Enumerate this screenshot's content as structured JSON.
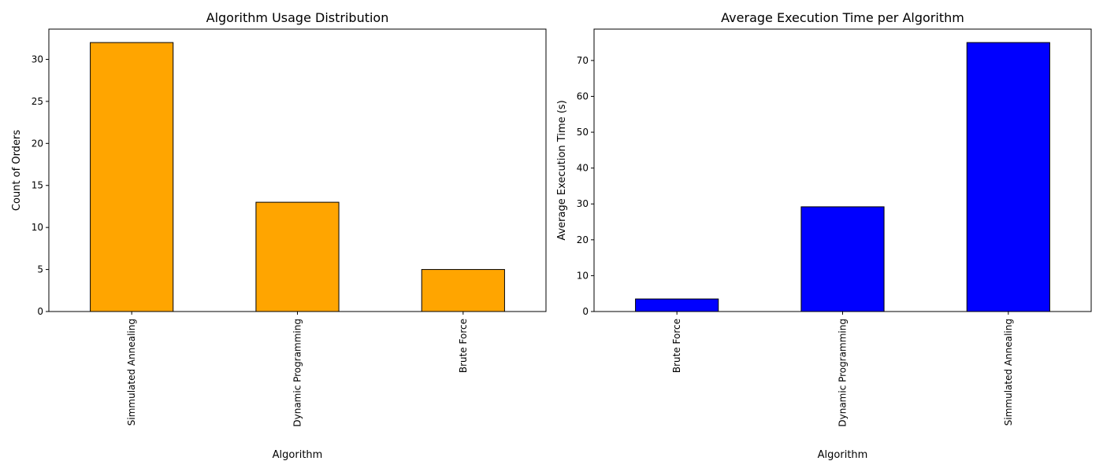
{
  "chart_data": [
    {
      "type": "bar",
      "title": "Algorithm Usage Distribution",
      "xlabel": "Algorithm",
      "ylabel": "Count of Orders",
      "categories": [
        "Simmulated Annealing",
        "Dynamic Programming",
        "Brute Force"
      ],
      "values": [
        32,
        13,
        5
      ],
      "ylim": [
        0,
        33.6
      ],
      "yticks": [
        0,
        5,
        10,
        15,
        20,
        25,
        30
      ],
      "bar_color": "#ffa500",
      "edge_color": "#000000",
      "grid": false
    },
    {
      "type": "bar",
      "title": "Average Execution Time per Algorithm",
      "xlabel": "Algorithm",
      "ylabel": "Average Execution Time (s)",
      "categories": [
        "Brute Force",
        "Dynamic Programming",
        "Simmulated Annealing"
      ],
      "values": [
        3.5,
        29.2,
        75.0
      ],
      "ylim": [
        0,
        78.75
      ],
      "yticks": [
        0,
        10,
        20,
        30,
        40,
        50,
        60,
        70
      ],
      "bar_color": "#0000ff",
      "edge_color": "#000000",
      "grid": false
    }
  ]
}
